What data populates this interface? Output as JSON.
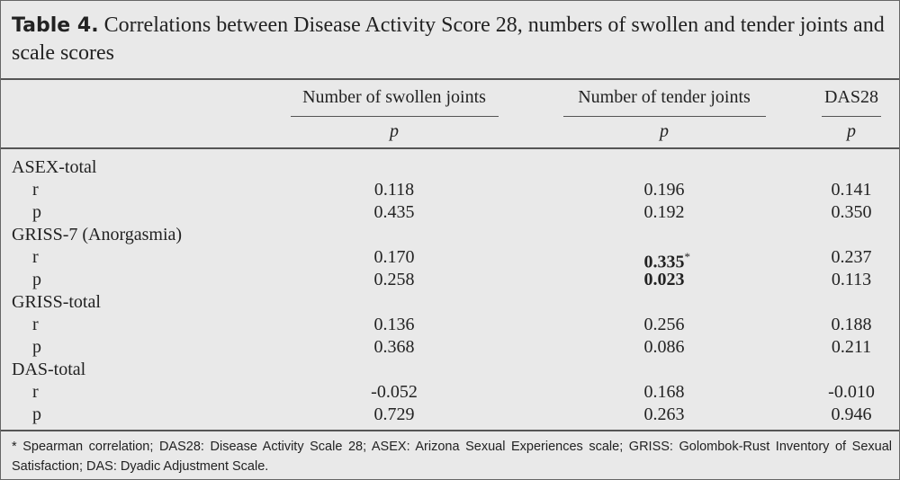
{
  "header": {
    "label": "Table 4.",
    "title": "Correlations between Disease Activity Score 28, numbers of swollen and tender joints and scale scores"
  },
  "table": {
    "columns": [
      "Number of swollen joints",
      "Number of tender joints",
      "DAS28"
    ],
    "subheader": [
      "p",
      "p",
      "p"
    ],
    "groups": [
      {
        "name": "ASEX-total",
        "rows": [
          {
            "label": "r",
            "cells": [
              "0.118",
              "0.196",
              "0.141"
            ]
          },
          {
            "label": "p",
            "cells": [
              "0.435",
              "0.192",
              "0.350"
            ]
          }
        ]
      },
      {
        "name": "GRISS-7 (Anorgasmia)",
        "rows": [
          {
            "label": "r",
            "cells": [
              "0.170",
              {
                "text": "0.335",
                "note": "*",
                "bold": true
              },
              "0.237"
            ]
          },
          {
            "label": "p",
            "cells": [
              "0.258",
              {
                "text": "0.023",
                "bold": true
              },
              "0.113"
            ]
          }
        ]
      },
      {
        "name": "GRISS-total",
        "rows": [
          {
            "label": "r",
            "cells": [
              "0.136",
              "0.256",
              "0.188"
            ]
          },
          {
            "label": "p",
            "cells": [
              "0.368",
              "0.086",
              "0.211"
            ]
          }
        ]
      },
      {
        "name": "DAS-total",
        "rows": [
          {
            "label": "r",
            "cells": [
              "-0.052",
              "0.168",
              "-0.010"
            ]
          },
          {
            "label": "p",
            "cells": [
              "0.729",
              "0.263",
              "0.946"
            ]
          }
        ]
      }
    ]
  },
  "footnote": "* Spearman correlation; DAS28: Disease Activity Scale 28; ASEX: Arizona Sexual Experiences scale; GRISS: Golombok-Rust Inventory of Sexual Satisfaction; DAS: Dyadic Adjustment Scale."
}
